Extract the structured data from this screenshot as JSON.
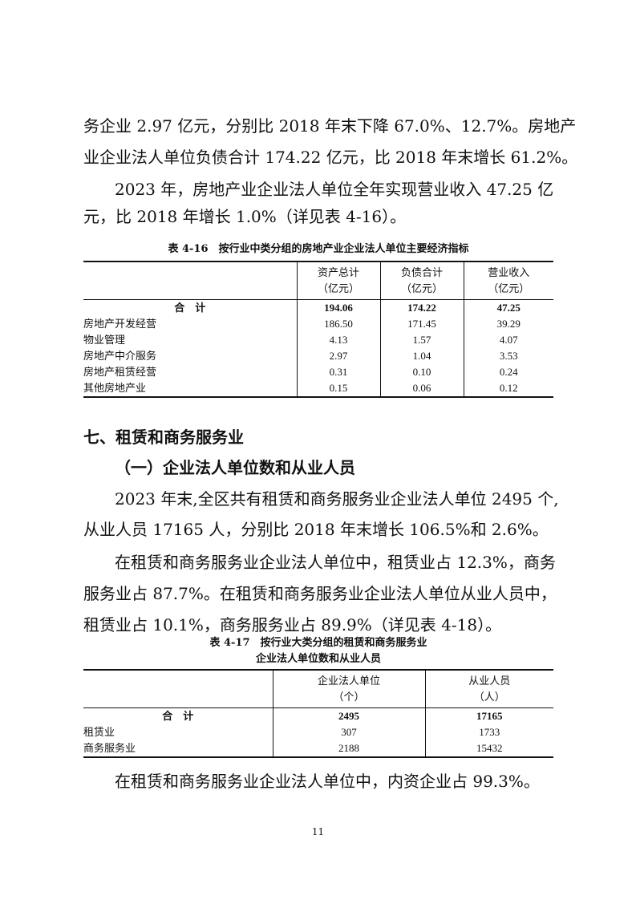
{
  "paragraphs_top": [
    "务企业 2.97 亿元，分别比 2018 年末下降 67.0%、12.7%。房地产",
    "业企业法人单位负债合计 174.22 亿元，比 2018 年末增长 61.2%。",
    "2023 年，房地产业企业法人单位全年实现营业收入 47.25 亿",
    "元，比 2018 年增长 1.0%（详见表 4-16）。"
  ],
  "table1": {
    "caption": "表 4-16　按行业中类分组的房地产业企业法人单位主要经济指标",
    "headers": [
      [
        "",
        ""
      ],
      [
        "资产总计",
        "（亿元）"
      ],
      [
        "负债合计",
        "（亿元）"
      ],
      [
        "营业收入",
        "（亿元）"
      ]
    ],
    "rows": [
      [
        "合　计",
        "194.06",
        "174.22",
        "47.25"
      ],
      [
        "房地产开发经营",
        "186.50",
        "171.45",
        "39.29"
      ],
      [
        "物业管理",
        "4.13",
        "1.57",
        "4.07"
      ],
      [
        "房地产中介服务",
        "2.97",
        "1.04",
        "3.53"
      ],
      [
        "房地产租赁经营",
        "0.31",
        "0.10",
        "0.24"
      ],
      [
        "其他房地产业",
        "0.15",
        "0.06",
        "0.12"
      ]
    ]
  },
  "section_heading": "七、租赁和商务服务业",
  "sub_heading": "（一）企业法人单位数和从业人员",
  "paragraphs_mid": [
    "2023 年末,全区共有租赁和商务服务业企业法人单位 2495 个,",
    "从业人员 17165 人，分别比 2018 年末增长 106.5%和 2.6%。",
    "在租赁和商务服务业企业法人单位中，租赁业占 12.3%，商务",
    "服务业占 87.7%。在租赁和商务服务业企业法人单位从业人员中，",
    "租赁业占 10.1%，商务服务业占 89.9%（详见表 4-18）。"
  ],
  "table2": {
    "caption_line1": "表 4-17　按行业大类分组的租赁和商务服务业",
    "caption_line2": "企业法人单位数和从业人员",
    "headers": [
      [
        "",
        ""
      ],
      [
        "企业法人单位",
        "（个）"
      ],
      [
        "从业人员",
        "（人）"
      ]
    ],
    "rows": [
      [
        "合　计",
        "2495",
        "17165"
      ],
      [
        "租赁业",
        "307",
        "1733"
      ],
      [
        "商务服务业",
        "2188",
        "15432"
      ]
    ]
  },
  "paragraph_bottom": "在租赁和商务服务业企业法人单位中，内资企业占 99.3%。",
  "page_number": "11"
}
